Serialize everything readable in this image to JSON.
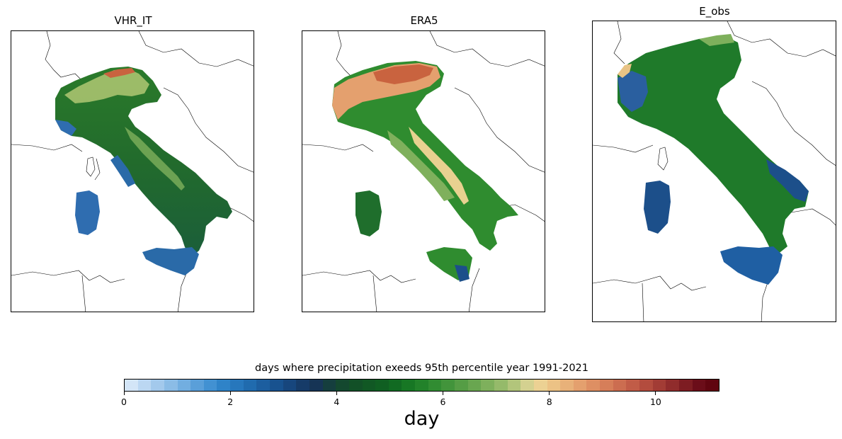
{
  "panels": [
    {
      "title": "VHR_IT"
    },
    {
      "title": "ERA5"
    },
    {
      "title": "E_obs"
    }
  ],
  "colorbar": {
    "title": "days where precipitation exeeds 95th percentile year 1991-2021",
    "unit": "day",
    "range": [
      0,
      11.2
    ],
    "ticks": [
      "0",
      "2",
      "4",
      "6",
      "8",
      "10"
    ],
    "colors": [
      "#d3e5f7",
      "#bbd7f2",
      "#a3c9ec",
      "#8bbce6",
      "#72aee0",
      "#5a9fd9",
      "#4291d2",
      "#2f83c8",
      "#2777bc",
      "#206bae",
      "#1c5e9f",
      "#18528f",
      "#17467d",
      "#163b68",
      "#163455",
      "#153e3e",
      "#14482f",
      "#125027",
      "#115824",
      "#105f22",
      "#116a22",
      "#177724",
      "#22822a",
      "#318c32",
      "#42943b",
      "#559d45",
      "#69a650",
      "#7eb05c",
      "#95ba6a",
      "#b2c57b",
      "#d4d190",
      "#ecd193",
      "#ecc285",
      "#e8b179",
      "#e4a06e",
      "#de8f63",
      "#d67e59",
      "#cc6d50",
      "#c15c47",
      "#b34c3e",
      "#a23c35",
      "#902c2c",
      "#7d1c22",
      "#6b0d19",
      "#600510"
    ],
    "color_stats": {
      "brand_green": "#1f7a2a",
      "blue_low": "#2f6db0",
      "red_high": "#a33a2c"
    }
  }
}
